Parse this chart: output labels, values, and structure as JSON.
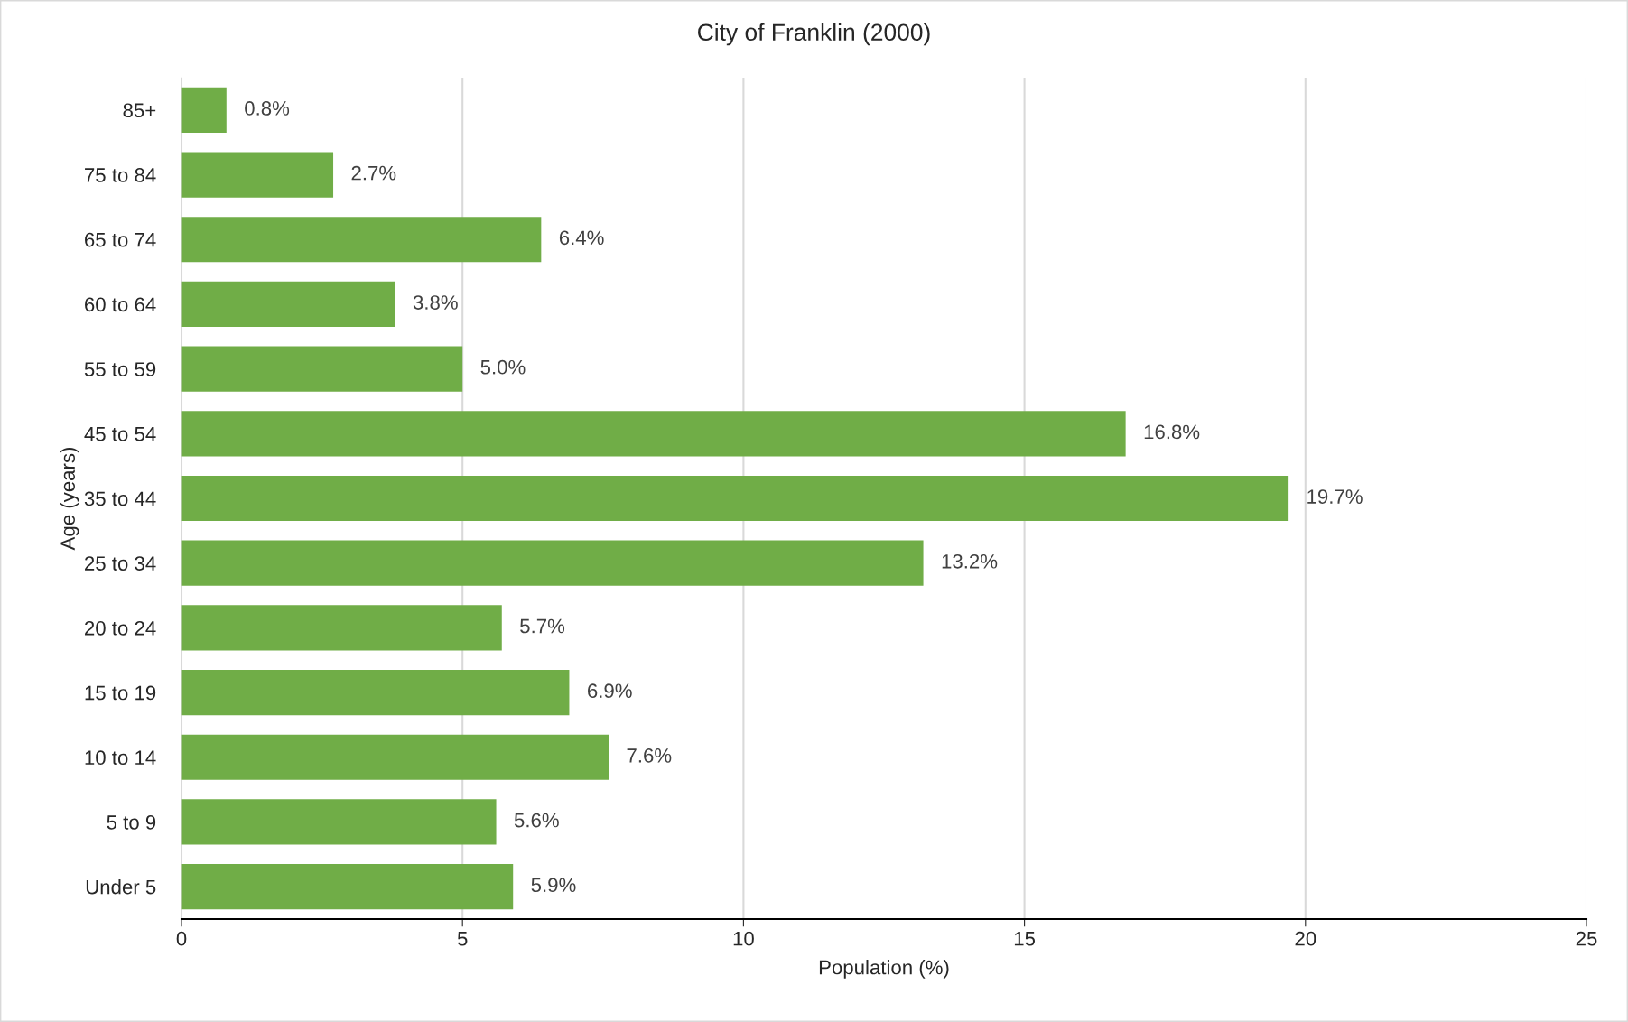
{
  "chart_data": {
    "type": "bar",
    "orientation": "horizontal",
    "title": "City of Franklin (2000)",
    "xlabel": "Population (%)",
    "ylabel": "Age (years)",
    "categories": [
      "85+",
      "75 to 84",
      "65 to 74",
      "60 to 64",
      "55 to 59",
      "45 to 54",
      "35 to 44",
      "25 to 34",
      "20 to 24",
      "15 to 19",
      "10 to 14",
      "5 to 9",
      "Under 5"
    ],
    "values": [
      0.8,
      2.7,
      6.4,
      3.8,
      5.0,
      16.8,
      19.7,
      13.2,
      5.7,
      6.9,
      7.6,
      5.6,
      5.9
    ],
    "value_labels": [
      "0.8%",
      "2.7%",
      "6.4%",
      "3.8%",
      "5.0%",
      "16.8%",
      "19.7%",
      "13.2%",
      "5.7%",
      "6.9%",
      "7.6%",
      "5.6%",
      "5.9%"
    ],
    "color": "#70ad47",
    "xlim": [
      0,
      25
    ],
    "xticks": [
      0,
      5,
      10,
      15,
      20,
      25
    ],
    "grid": "x",
    "legend": false
  }
}
